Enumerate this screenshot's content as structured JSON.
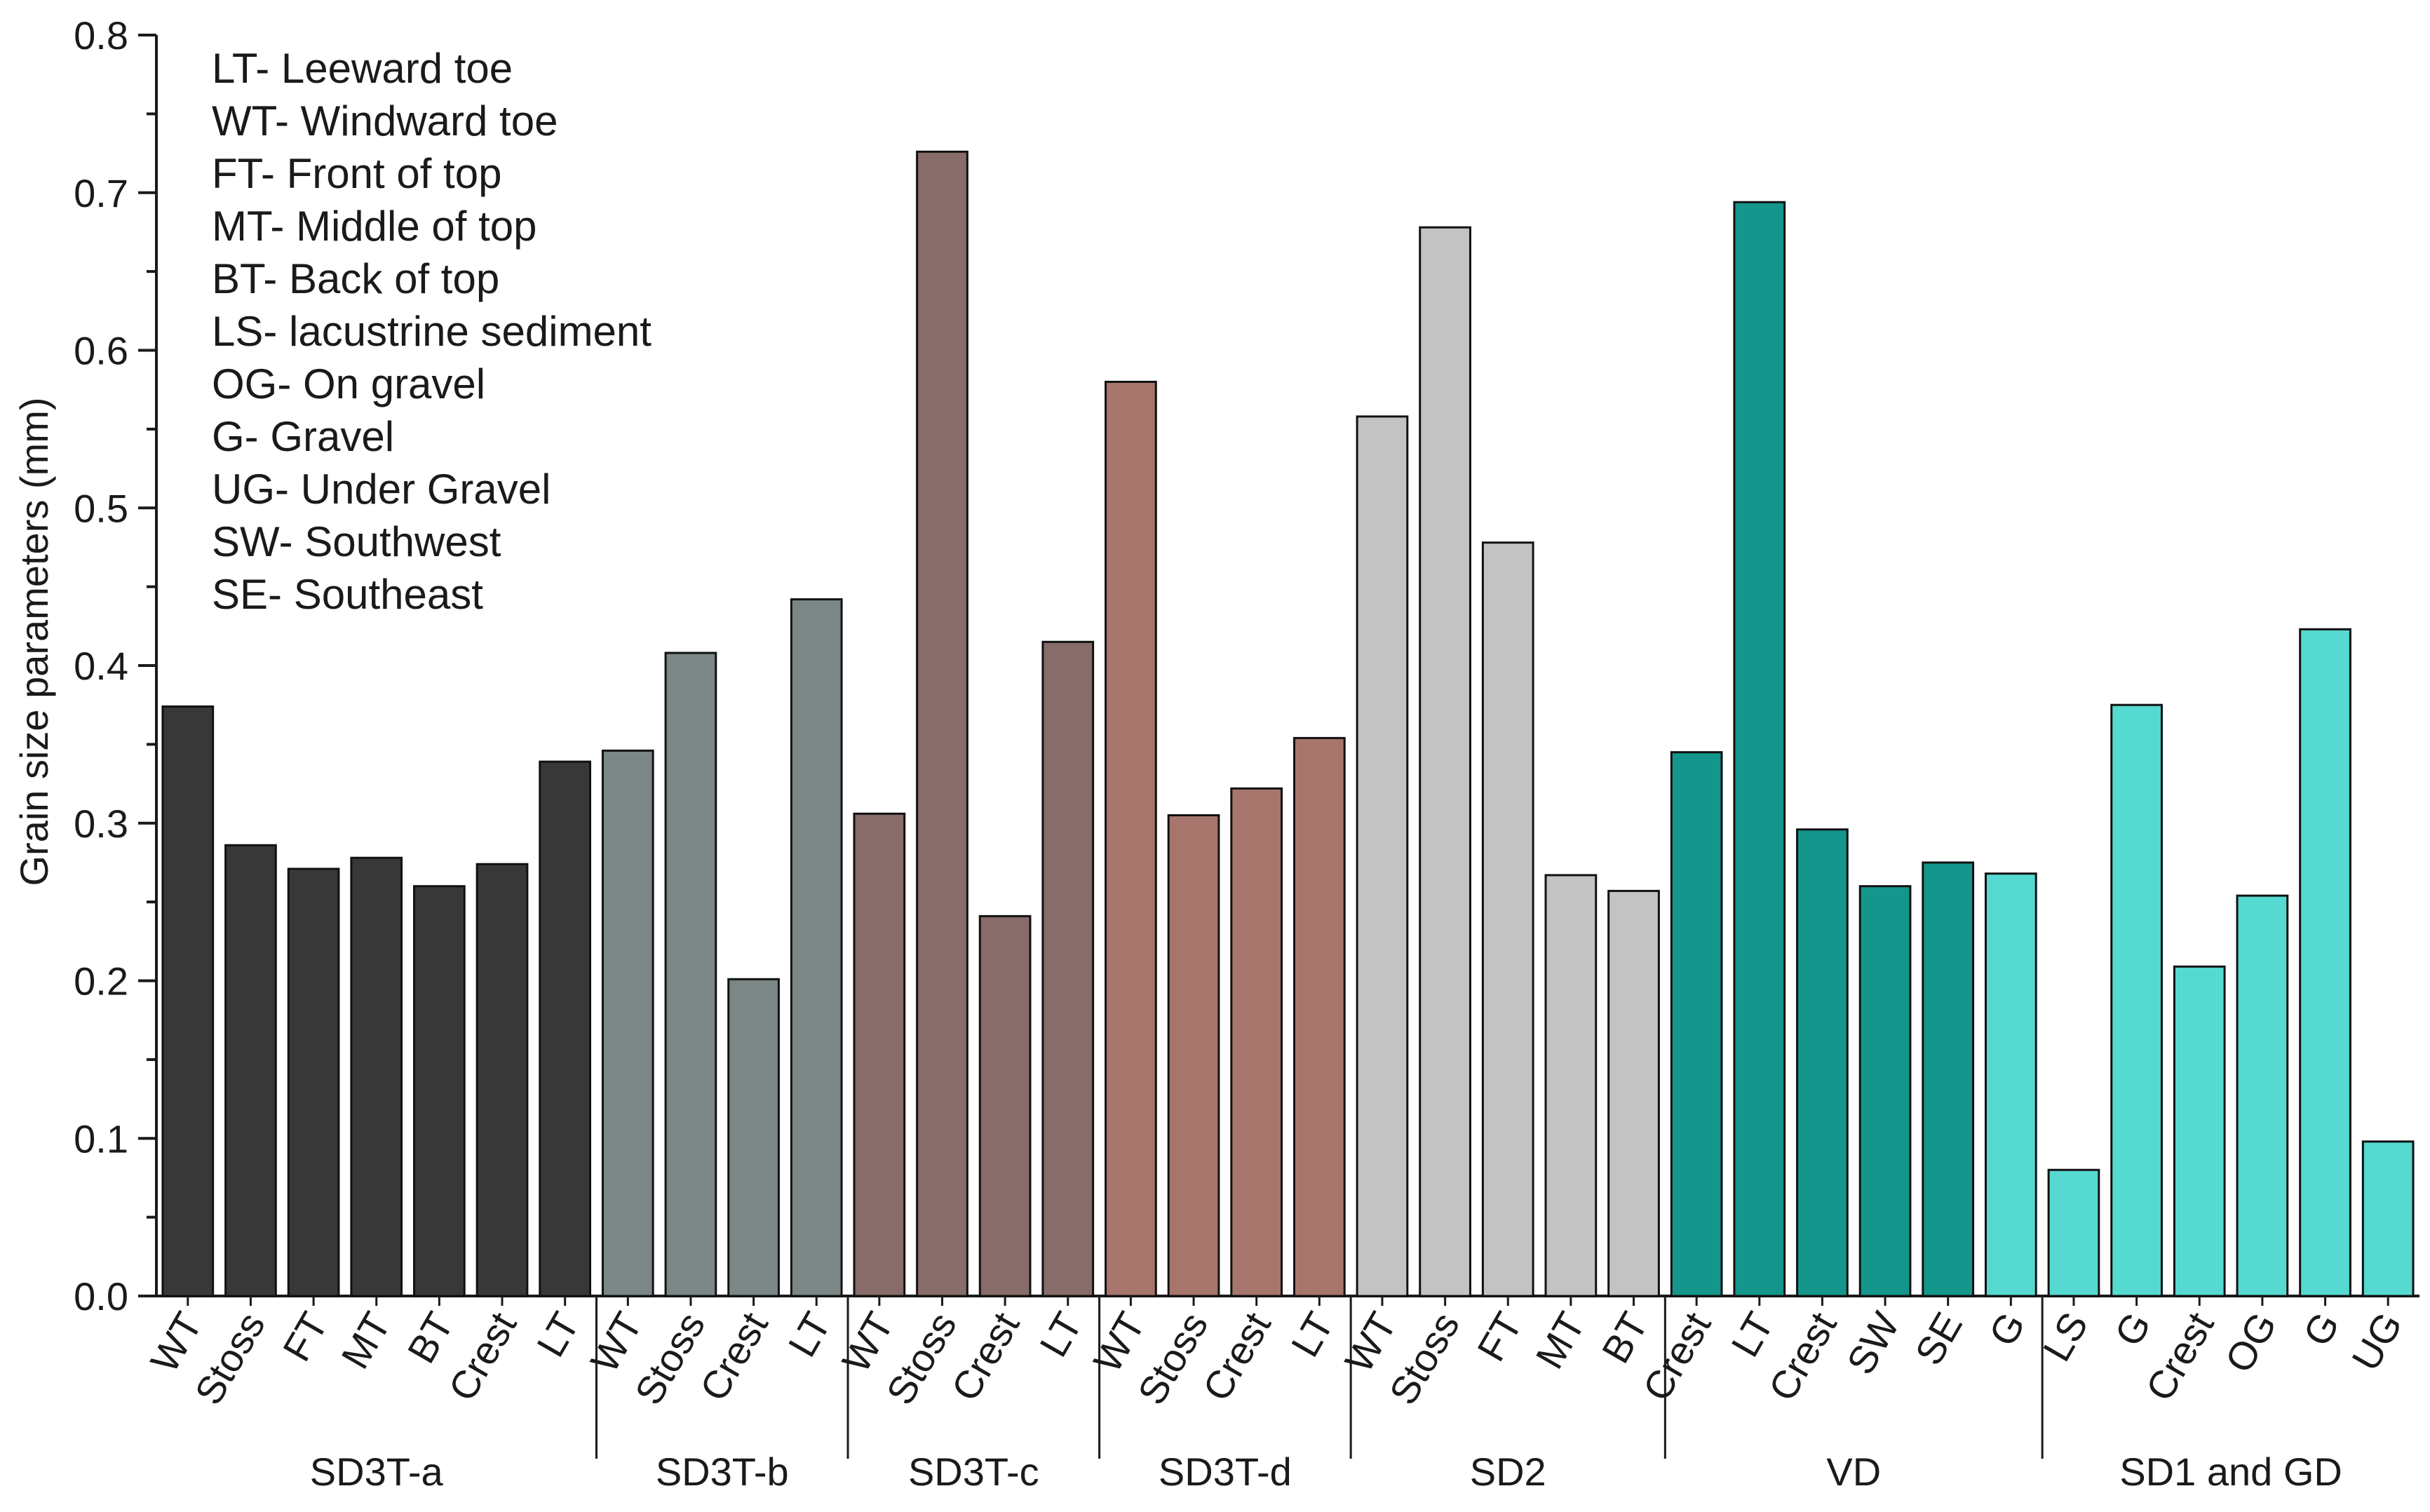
{
  "chart_data": {
    "type": "bar",
    "title": "",
    "xlabel": "",
    "ylabel": "Grain size parameters (mm)",
    "ylim": [
      0,
      0.8
    ],
    "y_ticks": [
      "0.0",
      "0.1",
      "0.2",
      "0.3",
      "0.4",
      "0.5",
      "0.6",
      "0.7",
      "0.8"
    ],
    "grid": false,
    "legend_position": "top-left",
    "legend": [
      "LT- Leeward toe",
      "WT- Windward toe",
      "FT- Front of top",
      "MT- Middle of top",
      "BT- Back of top",
      "LS- lacustrine sediment",
      "OG- On gravel",
      "G- Gravel",
      "UG- Under Gravel",
      "SW- Southwest",
      "SE- Southeast"
    ],
    "groups": [
      {
        "name": "SD3T-a",
        "color": "#383838",
        "bars": [
          {
            "label": "WT",
            "value": 0.374
          },
          {
            "label": "Stoss",
            "value": 0.286
          },
          {
            "label": "FT",
            "value": 0.271
          },
          {
            "label": "MT",
            "value": 0.278
          },
          {
            "label": "BT",
            "value": 0.26
          },
          {
            "label": "Crest",
            "value": 0.274
          },
          {
            "label": "LT",
            "value": 0.339
          }
        ]
      },
      {
        "name": "SD3T-b",
        "color": "#7b8786",
        "bars": [
          {
            "label": "WT",
            "value": 0.346
          },
          {
            "label": "Stoss",
            "value": 0.408
          },
          {
            "label": "Crest",
            "value": 0.201
          },
          {
            "label": "LT",
            "value": 0.442
          }
        ]
      },
      {
        "name": "SD3T-c",
        "color": "#876c69",
        "bars": [
          {
            "label": "WT",
            "value": 0.306
          },
          {
            "label": "Stoss",
            "value": 0.726
          },
          {
            "label": "Crest",
            "value": 0.241
          },
          {
            "label": "LT",
            "value": 0.415
          }
        ]
      },
      {
        "name": "SD3T-d",
        "color": "#a6766d",
        "bars": [
          {
            "label": "WT",
            "value": 0.58
          },
          {
            "label": "Stoss",
            "value": 0.305
          },
          {
            "label": "Crest",
            "value": 0.322
          },
          {
            "label": "LT",
            "value": 0.354
          }
        ]
      },
      {
        "name": "SD2",
        "color": "#c3c3c3",
        "bars": [
          {
            "label": "WT",
            "value": 0.558
          },
          {
            "label": "Stoss",
            "value": 0.678
          },
          {
            "label": "FT",
            "value": 0.478
          },
          {
            "label": "MT",
            "value": 0.267
          },
          {
            "label": "BT",
            "value": 0.257
          }
        ]
      },
      {
        "name": "VD",
        "color": "#14968c",
        "bars": [
          {
            "label": "Crest",
            "value": 0.345
          },
          {
            "label": "LT",
            "value": 0.694
          },
          {
            "label": "Crest",
            "value": 0.296
          },
          {
            "label": "SW",
            "value": 0.26
          },
          {
            "label": "SE",
            "value": 0.275
          },
          {
            "label": "G",
            "value": 0.268,
            "color": "#55d9d0"
          }
        ]
      },
      {
        "name": "SD1 and GD",
        "color": "#55d9d0",
        "bars": [
          {
            "label": "LS",
            "value": 0.08
          },
          {
            "label": "G",
            "value": 0.375
          },
          {
            "label": "Crest",
            "value": 0.209
          },
          {
            "label": "OG",
            "value": 0.254
          },
          {
            "label": "G",
            "value": 0.423
          },
          {
            "label": "UG",
            "value": 0.098
          }
        ]
      }
    ]
  }
}
